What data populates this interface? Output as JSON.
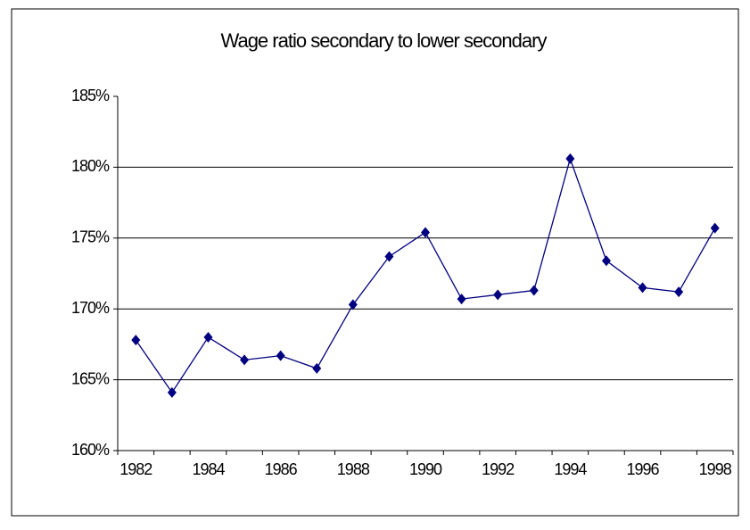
{
  "chart_data": {
    "type": "line",
    "title": "Wage ratio secondary  to lower secondary",
    "categories": [
      "1982",
      null,
      "1984",
      null,
      "1986",
      null,
      "1988",
      null,
      "1990",
      null,
      "1992",
      null,
      "1994",
      null,
      "1996",
      null,
      "1998"
    ],
    "series": [
      {
        "name": "Wage ratio",
        "color": "#000080",
        "values": [
          167.8,
          164.1,
          168.0,
          166.4,
          166.7,
          165.8,
          170.3,
          173.7,
          175.4,
          170.7,
          171.0,
          171.3,
          180.6,
          173.4,
          171.5,
          171.2,
          175.7
        ]
      }
    ],
    "ylim": [
      160,
      185
    ],
    "yticks": [
      {
        "value": 160,
        "label": "160%"
      },
      {
        "value": 165,
        "label": "165%"
      },
      {
        "value": 170,
        "label": "170%"
      },
      {
        "value": 175,
        "label": "175%"
      },
      {
        "value": 180,
        "label": "180%"
      },
      {
        "value": 185,
        "label": "185%"
      }
    ],
    "grid": true
  }
}
